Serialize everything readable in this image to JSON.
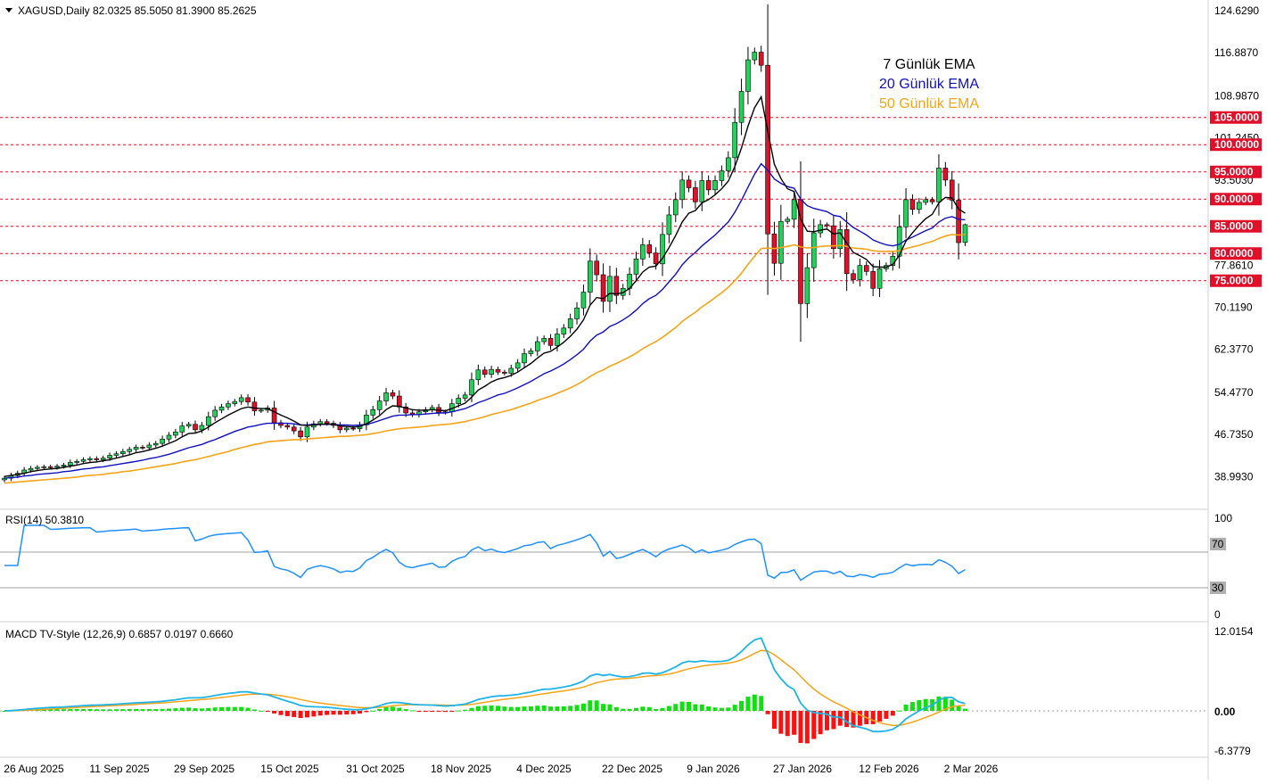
{
  "symbol_line": "XAGUSD,Daily  82.0325 85.5050 81.3900 85.2625",
  "colors": {
    "bull": "#22d05a",
    "bear": "#e0102a",
    "ema7": "#000000",
    "ema20": "#1010c0",
    "ema50": "#f5a418",
    "rsi": "#1e90ff",
    "macd": "#1eb4e6",
    "signal": "#f5a418",
    "level": "#e0102a"
  },
  "legend": {
    "ema7": "7 Günlük EMA",
    "ema20": "20 Günlük EMA",
    "ema50": "50 Günlük EMA"
  },
  "price_axis_ticks": [
    "124.6290",
    "116.8870",
    "108.9870",
    "101.2450",
    "93.5030",
    "77.8610",
    "70.1190",
    "62.3770",
    "54.4770",
    "46.7350",
    "38.9930"
  ],
  "price_levels": [
    "105.0000",
    "100.0000",
    "95.0000",
    "90.0000",
    "85.0000",
    "80.0000",
    "75.0000"
  ],
  "rsi": {
    "label": "RSI(14) 50.3810",
    "ticks": [
      "100",
      "70",
      "30",
      "0"
    ]
  },
  "macd": {
    "label": "MACD TV-Style (12,26,9) 0.6857 0.0197 0.6660",
    "ticks": [
      "12.0154",
      "0.00",
      "-6.3779"
    ]
  },
  "date_ticks": [
    "26 Aug 2025",
    "11 Sep 2025",
    "29 Sep 2025",
    "15 Oct 2025",
    "31 Oct 2025",
    "18 Nov 2025",
    "4 Dec 2025",
    "22 Dec 2025",
    "9 Jan 2026",
    "27 Jan 2026",
    "12 Feb 2026",
    "2 Mar 2026"
  ],
  "chart_data": {
    "type": "candlestick",
    "symbol": "XAGUSD",
    "timeframe": "Daily",
    "last_bar": {
      "open": 82.0325,
      "high": 85.505,
      "low": 81.39,
      "close": 85.2625
    },
    "ylim": [
      38.993,
      124.629
    ],
    "horizontal_levels": [
      105,
      100,
      95,
      90,
      85,
      80,
      75
    ],
    "closes_approx": [
      38.7,
      39.2,
      39.6,
      40.2,
      40.5,
      40.7,
      40.8,
      40.7,
      40.9,
      41.1,
      41.6,
      41.8,
      42.1,
      42.3,
      42.1,
      42.4,
      42.9,
      43.2,
      43.6,
      44.0,
      44.4,
      44.3,
      44.8,
      45.1,
      45.9,
      46.6,
      47.2,
      48.3,
      48.6,
      47.6,
      48.4,
      50.0,
      51.2,
      51.8,
      52.4,
      52.8,
      53.5,
      52.7,
      51.1,
      51.2,
      51.6,
      48.9,
      48.4,
      48.1,
      47.4,
      46.3,
      48.1,
      48.7,
      49.1,
      48.8,
      48.4,
      47.6,
      47.9,
      47.8,
      48.5,
      50.3,
      51.3,
      52.9,
      54.4,
      53.8,
      51.8,
      50.7,
      50.4,
      50.9,
      51.3,
      51.7,
      50.8,
      50.9,
      52.4,
      53.4,
      54.0,
      56.8,
      58.6,
      57.8,
      58.7,
      58.2,
      58.0,
      58.9,
      59.9,
      61.6,
      62.1,
      63.8,
      64.4,
      63.1,
      65.2,
      66.3,
      68.0,
      70.0,
      72.9,
      78.6,
      76.1,
      71.2,
      75.8,
      72.3,
      73.6,
      76.2,
      79.0,
      81.6,
      80.1,
      78.1,
      83.5,
      87.1,
      89.9,
      93.5,
      92.1,
      89.5,
      93.4,
      91.7,
      93.4,
      95.2,
      97.6,
      104.1,
      109.8,
      115.6,
      117.0,
      114.6,
      83.6,
      78.2,
      85.9,
      86.3,
      89.9,
      70.8,
      77.4,
      83.8,
      85.3,
      85.1,
      80.9,
      84.4,
      76.3,
      75.2,
      77.8,
      76.7,
      73.6,
      77.2,
      77.8,
      79.5,
      84.9,
      89.9,
      88.1,
      89.4,
      89.9,
      89.5,
      95.7,
      93.5,
      89.8,
      82.0,
      85.3
    ],
    "ema7_approx": [
      39.0,
      39.2,
      39.4,
      39.6,
      39.9,
      40.1,
      40.3,
      40.4,
      40.5,
      40.7,
      40.9,
      41.1,
      41.4,
      41.6,
      41.7,
      41.9,
      42.1,
      42.4,
      42.7,
      43.0,
      43.4,
      43.6,
      43.9,
      44.2,
      44.6,
      45.1,
      45.6,
      46.3,
      46.9,
      47.0,
      47.4,
      48.1,
      48.9,
      49.6,
      50.3,
      50.9,
      51.5,
      51.8,
      51.6,
      51.5,
      51.5,
      50.9,
      50.3,
      49.8,
      49.2,
      48.5,
      48.4,
      48.5,
      48.6,
      48.7,
      48.6,
      48.3,
      48.2,
      48.1,
      48.2,
      48.7,
      49.4,
      50.2,
      51.3,
      52.0,
      51.9,
      51.6,
      51.3,
      51.2,
      51.2,
      51.3,
      51.2,
      51.1,
      51.5,
      52.0,
      52.5,
      53.6,
      54.9,
      55.6,
      56.4,
      56.9,
      57.2,
      57.6,
      58.2,
      59.0,
      59.8,
      60.8,
      61.7,
      62.0,
      62.8,
      63.7,
      64.8,
      66.1,
      67.8,
      70.5,
      71.9,
      71.7,
      72.7,
      72.6,
      72.8,
      73.6,
      75.0,
      76.6,
      77.5,
      77.7,
      79.1,
      81.1,
      83.3,
      85.8,
      87.4,
      87.9,
      89.3,
      89.9,
      90.8,
      91.9,
      93.3,
      96.0,
      99.4,
      103.4,
      106.8,
      108.8,
      102.5,
      96.4,
      93.8,
      91.9,
      91.4,
      86.3,
      84.1,
      84.0,
      84.3,
      84.5,
      83.6,
      83.8,
      81.9,
      80.2,
      79.6,
      78.9,
      77.6,
      77.5,
      77.5,
      78.0,
      79.7,
      82.3,
      83.8,
      85.2,
      86.4,
      87.2,
      89.3,
      90.3,
      90.2,
      88.2,
      87.4
    ],
    "ema20_approx": [
      38.7,
      38.8,
      38.9,
      39.1,
      39.2,
      39.4,
      39.5,
      39.6,
      39.7,
      39.9,
      40.0,
      40.2,
      40.4,
      40.5,
      40.7,
      40.8,
      41.0,
      41.2,
      41.4,
      41.6,
      41.8,
      42.0,
      42.3,
      42.5,
      42.8,
      43.1,
      43.5,
      43.9,
      44.3,
      44.6,
      44.9,
      45.4,
      45.8,
      46.3,
      46.8,
      47.3,
      47.7,
      48.1,
      48.3,
      48.6,
      48.8,
      48.8,
      48.8,
      48.8,
      48.7,
      48.5,
      48.5,
      48.6,
      48.6,
      48.6,
      48.6,
      48.5,
      48.5,
      48.4,
      48.5,
      48.6,
      48.9,
      49.3,
      49.7,
      50.1,
      50.3,
      50.3,
      50.4,
      50.4,
      50.5,
      50.6,
      50.7,
      50.7,
      50.9,
      51.2,
      51.5,
      52.0,
      52.6,
      53.0,
      53.5,
      54.0,
      54.3,
      54.8,
      55.3,
      55.9,
      56.5,
      57.2,
      57.9,
      58.4,
      59.0,
      59.7,
      60.5,
      61.4,
      62.4,
      63.9,
      65.0,
      65.6,
      66.6,
      67.1,
      67.8,
      68.6,
      69.6,
      70.8,
      71.7,
      72.3,
      73.4,
      74.8,
      76.2,
      77.9,
      79.2,
      80.2,
      81.4,
      82.4,
      83.4,
      84.6,
      85.8,
      87.6,
      89.8,
      92.2,
      94.6,
      96.5,
      95.3,
      93.7,
      92.9,
      92.3,
      92.0,
      90.0,
      88.8,
      88.3,
      88.0,
      87.7,
      87.0,
      86.8,
      85.8,
      84.8,
      84.1,
      83.4,
      82.5,
      82.0,
      81.6,
      81.4,
      81.7,
      82.5,
      83.0,
      83.6,
      84.2,
      84.7,
      85.8,
      86.5,
      86.8,
      86.3,
      86.2
    ],
    "ema50_approx": [
      37.8,
      37.9,
      38.0,
      38.1,
      38.2,
      38.3,
      38.4,
      38.5,
      38.6,
      38.7,
      38.8,
      38.9,
      39.1,
      39.2,
      39.3,
      39.4,
      39.6,
      39.7,
      39.9,
      40.0,
      40.2,
      40.4,
      40.6,
      40.8,
      41.0,
      41.2,
      41.4,
      41.7,
      41.9,
      42.1,
      42.4,
      42.7,
      43.0,
      43.3,
      43.6,
      44.0,
      44.3,
      44.6,
      44.9,
      45.1,
      45.4,
      45.5,
      45.6,
      45.7,
      45.8,
      45.8,
      45.9,
      46.0,
      46.1,
      46.2,
      46.3,
      46.4,
      46.4,
      46.5,
      46.6,
      46.7,
      46.9,
      47.1,
      47.4,
      47.6,
      47.8,
      47.9,
      48.0,
      48.1,
      48.2,
      48.4,
      48.5,
      48.6,
      48.7,
      48.9,
      49.1,
      49.4,
      49.7,
      50.0,
      50.4,
      50.7,
      51.0,
      51.3,
      51.7,
      52.1,
      52.5,
      53.0,
      53.4,
      53.8,
      54.3,
      54.8,
      55.3,
      55.9,
      56.6,
      57.4,
      58.1,
      58.6,
      59.3,
      59.8,
      60.4,
      61.0,
      61.7,
      62.5,
      63.2,
      63.8,
      64.6,
      65.5,
      66.4,
      67.5,
      68.4,
      69.2,
      70.2,
      71.0,
      71.9,
      72.8,
      73.8,
      75.0,
      76.4,
      78.0,
      79.5,
      80.9,
      81.0,
      80.9,
      81.1,
      81.3,
      81.6,
      81.2,
      81.0,
      81.1,
      81.3,
      81.4,
      81.4,
      81.5,
      81.3,
      81.0,
      80.9,
      80.8,
      80.5,
      80.4,
      80.4,
      80.4,
      80.5,
      80.9,
      81.2,
      81.5,
      81.9,
      82.2,
      82.8,
      83.2,
      83.5,
      83.4,
      83.5
    ],
    "rsi_current": 50.381,
    "rsi_levels": [
      70,
      30
    ],
    "macd_current": {
      "macd": 0.6857,
      "signal": 0.0197,
      "histogram": 0.666
    },
    "macd_range": [
      -6.3779,
      12.0154
    ]
  }
}
